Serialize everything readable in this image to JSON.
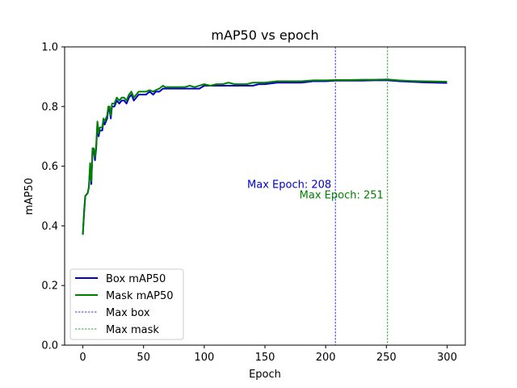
{
  "chart_data": {
    "type": "line",
    "title": "mAP50 vs epoch",
    "xlabel": "Epoch",
    "ylabel": "mAP50",
    "xlim": [
      -15,
      315
    ],
    "ylim": [
      0.0,
      1.0
    ],
    "xticks": [
      0,
      50,
      100,
      150,
      200,
      250,
      300
    ],
    "xtick_labels": [
      "0",
      "50",
      "100",
      "150",
      "200",
      "250",
      "300"
    ],
    "yticks": [
      0.0,
      0.2,
      0.4,
      0.6,
      0.8,
      1.0
    ],
    "ytick_labels": [
      "0.0",
      "0.2",
      "0.4",
      "0.6",
      "0.8",
      "1.0"
    ],
    "grid": false,
    "legend_position": "lower-left",
    "series": [
      {
        "name": "Box mAP50",
        "color": "#0000cc",
        "points": [
          [
            0,
            0.37
          ],
          [
            1,
            0.44
          ],
          [
            2,
            0.5
          ],
          [
            4,
            0.51
          ],
          [
            5,
            0.53
          ],
          [
            6,
            0.6
          ],
          [
            7,
            0.54
          ],
          [
            8,
            0.66
          ],
          [
            9,
            0.65
          ],
          [
            10,
            0.62
          ],
          [
            11,
            0.66
          ],
          [
            12,
            0.74
          ],
          [
            13,
            0.7
          ],
          [
            14,
            0.72
          ],
          [
            16,
            0.72
          ],
          [
            17,
            0.75
          ],
          [
            18,
            0.74
          ],
          [
            20,
            0.76
          ],
          [
            21,
            0.79
          ],
          [
            22,
            0.79
          ],
          [
            23,
            0.76
          ],
          [
            24,
            0.8
          ],
          [
            26,
            0.8
          ],
          [
            28,
            0.82
          ],
          [
            30,
            0.81
          ],
          [
            32,
            0.82
          ],
          [
            34,
            0.82
          ],
          [
            36,
            0.81
          ],
          [
            38,
            0.83
          ],
          [
            40,
            0.84
          ],
          [
            42,
            0.82
          ],
          [
            44,
            0.83
          ],
          [
            46,
            0.84
          ],
          [
            48,
            0.84
          ],
          [
            50,
            0.84
          ],
          [
            52,
            0.84
          ],
          [
            55,
            0.85
          ],
          [
            58,
            0.84
          ],
          [
            60,
            0.85
          ],
          [
            63,
            0.85
          ],
          [
            66,
            0.86
          ],
          [
            68,
            0.86
          ],
          [
            70,
            0.86
          ],
          [
            73,
            0.86
          ],
          [
            76,
            0.86
          ],
          [
            80,
            0.86
          ],
          [
            84,
            0.86
          ],
          [
            88,
            0.86
          ],
          [
            92,
            0.86
          ],
          [
            96,
            0.86
          ],
          [
            100,
            0.87
          ],
          [
            105,
            0.87
          ],
          [
            110,
            0.87
          ],
          [
            115,
            0.87
          ],
          [
            120,
            0.87
          ],
          [
            125,
            0.87
          ],
          [
            130,
            0.87
          ],
          [
            135,
            0.87
          ],
          [
            140,
            0.87
          ],
          [
            145,
            0.875
          ],
          [
            150,
            0.875
          ],
          [
            160,
            0.88
          ],
          [
            170,
            0.88
          ],
          [
            180,
            0.88
          ],
          [
            190,
            0.885
          ],
          [
            200,
            0.885
          ],
          [
            208,
            0.887
          ],
          [
            220,
            0.887
          ],
          [
            230,
            0.887
          ],
          [
            240,
            0.888
          ],
          [
            251,
            0.888
          ],
          [
            260,
            0.885
          ],
          [
            270,
            0.883
          ],
          [
            280,
            0.881
          ],
          [
            290,
            0.88
          ],
          [
            300,
            0.879
          ]
        ]
      },
      {
        "name": "Mask mAP50",
        "color": "#008000",
        "points": [
          [
            0,
            0.37
          ],
          [
            1,
            0.45
          ],
          [
            2,
            0.5
          ],
          [
            4,
            0.51
          ],
          [
            5,
            0.53
          ],
          [
            6,
            0.61
          ],
          [
            7,
            0.55
          ],
          [
            8,
            0.66
          ],
          [
            9,
            0.66
          ],
          [
            10,
            0.63
          ],
          [
            11,
            0.67
          ],
          [
            12,
            0.75
          ],
          [
            13,
            0.71
          ],
          [
            14,
            0.73
          ],
          [
            16,
            0.73
          ],
          [
            17,
            0.76
          ],
          [
            18,
            0.75
          ],
          [
            20,
            0.77
          ],
          [
            21,
            0.8
          ],
          [
            22,
            0.8
          ],
          [
            23,
            0.77
          ],
          [
            24,
            0.81
          ],
          [
            26,
            0.81
          ],
          [
            28,
            0.83
          ],
          [
            30,
            0.82
          ],
          [
            32,
            0.83
          ],
          [
            34,
            0.83
          ],
          [
            36,
            0.82
          ],
          [
            38,
            0.84
          ],
          [
            40,
            0.85
          ],
          [
            42,
            0.83
          ],
          [
            44,
            0.84
          ],
          [
            46,
            0.85
          ],
          [
            48,
            0.85
          ],
          [
            50,
            0.85
          ],
          [
            52,
            0.85
          ],
          [
            55,
            0.855
          ],
          [
            58,
            0.85
          ],
          [
            60,
            0.855
          ],
          [
            63,
            0.86
          ],
          [
            66,
            0.87
          ],
          [
            68,
            0.865
          ],
          [
            70,
            0.865
          ],
          [
            73,
            0.865
          ],
          [
            76,
            0.865
          ],
          [
            80,
            0.865
          ],
          [
            84,
            0.865
          ],
          [
            88,
            0.87
          ],
          [
            92,
            0.865
          ],
          [
            96,
            0.87
          ],
          [
            100,
            0.875
          ],
          [
            105,
            0.87
          ],
          [
            110,
            0.875
          ],
          [
            115,
            0.875
          ],
          [
            120,
            0.88
          ],
          [
            125,
            0.875
          ],
          [
            130,
            0.875
          ],
          [
            135,
            0.875
          ],
          [
            140,
            0.88
          ],
          [
            145,
            0.88
          ],
          [
            150,
            0.88
          ],
          [
            160,
            0.885
          ],
          [
            170,
            0.885
          ],
          [
            180,
            0.885
          ],
          [
            190,
            0.888
          ],
          [
            200,
            0.888
          ],
          [
            208,
            0.889
          ],
          [
            220,
            0.889
          ],
          [
            230,
            0.89
          ],
          [
            240,
            0.89
          ],
          [
            251,
            0.891
          ],
          [
            260,
            0.888
          ],
          [
            270,
            0.886
          ],
          [
            280,
            0.885
          ],
          [
            290,
            0.884
          ],
          [
            300,
            0.883
          ]
        ]
      }
    ],
    "vlines": [
      {
        "name": "Max box",
        "x": 208,
        "color": "#0000cc",
        "label": "Max Epoch: 208",
        "label_y": 0.54
      },
      {
        "name": "Max mask",
        "x": 251,
        "color": "#008000",
        "label": "Max Epoch: 251",
        "label_y": 0.505
      }
    ]
  }
}
